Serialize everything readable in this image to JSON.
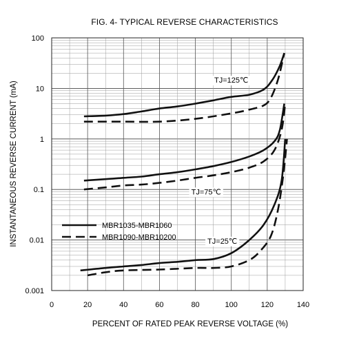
{
  "chart_data": {
    "type": "line",
    "title": "FIG. 4- TYPICAL REVERSE CHARACTERISTICS",
    "xlabel": "PERCENT OF RATED PEAK REVERSE VOLTAGE (%)",
    "ylabel": "INSTANTANEOUS REVERSE CURRENT (mA)",
    "xlim": [
      0,
      140
    ],
    "ylim": [
      0.001,
      100
    ],
    "yscale": "log",
    "grid": true,
    "legend_position": "lower-left",
    "x_ticks": [
      "0",
      "20",
      "40",
      "60",
      "80",
      "100",
      "120",
      "140"
    ],
    "y_ticks": [
      "0.001",
      "0.01",
      "0.1",
      "1",
      "10",
      "100"
    ],
    "annotations": [
      {
        "text": "TJ=125℃",
        "x": 100,
        "y": 13
      },
      {
        "text": "TJ=75℃",
        "x": 86,
        "y": 0.08
      },
      {
        "text": "TJ=25℃",
        "x": 95,
        "y": 0.0085
      }
    ],
    "legend": [
      {
        "label": "MBR1035-MBR1060",
        "style": "solid"
      },
      {
        "label": "MBR1090-MBR10200",
        "style": "dashed"
      }
    ],
    "series": [
      {
        "name": "MBR1035-MBR1060",
        "group": "TJ=125℃",
        "style": "solid",
        "x": [
          18,
          30,
          40,
          50,
          60,
          70,
          80,
          90,
          100,
          110,
          118,
          123,
          127,
          129.5
        ],
        "y": [
          2.8,
          2.9,
          3.1,
          3.5,
          4.0,
          4.4,
          5.0,
          5.8,
          6.8,
          7.5,
          9.5,
          15,
          28,
          50
        ]
      },
      {
        "name": "MBR1090-MBR10200",
        "group": "TJ=125℃",
        "style": "dashed",
        "x": [
          18,
          40,
          60,
          80,
          100,
          110,
          118,
          122,
          126,
          129.5
        ],
        "y": [
          2.2,
          2.2,
          2.2,
          2.5,
          3.2,
          3.8,
          4.6,
          6.5,
          15,
          50
        ]
      },
      {
        "name": "MBR1035-MBR1060",
        "group": "TJ=75℃",
        "style": "solid",
        "x": [
          18,
          30,
          40,
          50,
          60,
          70,
          80,
          90,
          100,
          110,
          118,
          124,
          127,
          129.5
        ],
        "y": [
          0.15,
          0.16,
          0.17,
          0.18,
          0.2,
          0.22,
          0.25,
          0.29,
          0.35,
          0.45,
          0.6,
          0.9,
          1.5,
          5
        ]
      },
      {
        "name": "MBR1090-MBR10200",
        "group": "TJ=75℃",
        "style": "dashed",
        "x": [
          18,
          30,
          40,
          50,
          60,
          70,
          80,
          90,
          100,
          110,
          118,
          124,
          128,
          130
        ],
        "y": [
          0.1,
          0.11,
          0.12,
          0.125,
          0.135,
          0.15,
          0.17,
          0.19,
          0.22,
          0.27,
          0.36,
          0.6,
          1.5,
          5
        ]
      },
      {
        "name": "MBR1035-MBR1060",
        "group": "TJ=25℃",
        "style": "solid",
        "x": [
          16,
          30,
          40,
          50,
          60,
          70,
          80,
          90,
          100,
          110,
          118,
          124,
          128,
          130
        ],
        "y": [
          0.0025,
          0.0028,
          0.003,
          0.0032,
          0.0035,
          0.0037,
          0.004,
          0.0042,
          0.0055,
          0.01,
          0.02,
          0.05,
          0.15,
          1
        ]
      },
      {
        "name": "MBR1090-MBR10200",
        "group": "TJ=25℃",
        "style": "dashed",
        "x": [
          20,
          30,
          40,
          60,
          80,
          90,
          100,
          110,
          116,
          122,
          126,
          129,
          131
        ],
        "y": [
          0.002,
          0.0023,
          0.0025,
          0.0026,
          0.0028,
          0.0028,
          0.003,
          0.004,
          0.006,
          0.012,
          0.04,
          0.2,
          1
        ]
      }
    ]
  }
}
